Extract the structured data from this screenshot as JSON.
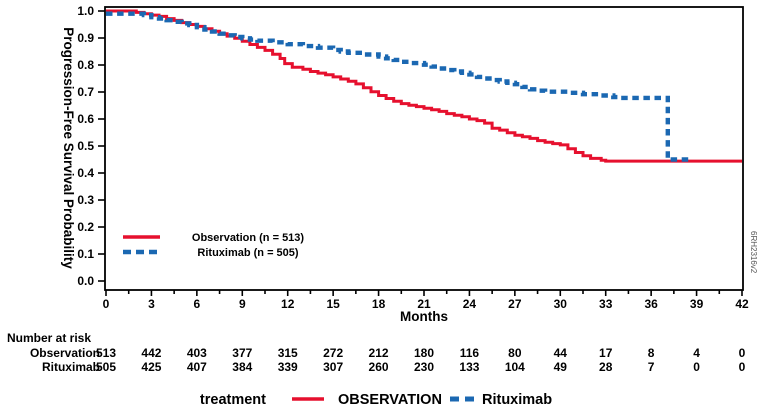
{
  "figure": {
    "y_axis_title": "Progression-Free Survival Probability",
    "x_axis_title": "Months",
    "side_label": "6RH2316v2",
    "colors": {
      "observation": "#E6102E",
      "rituximab": "#1B68B2",
      "axis": "#000000",
      "background": "#FFFFFF"
    }
  },
  "inner_legend": {
    "observation": "Observation (n = 513)",
    "rituximab": "Rituximab (n = 505)"
  },
  "bottom_legend": {
    "prefix": "treatment",
    "observation": "OBSERVATION",
    "rituximab": "Rituximab"
  },
  "risk_table": {
    "title": "Number at risk",
    "rows": [
      {
        "label": "Observation",
        "values": [
          513,
          442,
          403,
          377,
          315,
          272,
          212,
          180,
          116,
          80,
          44,
          17,
          8,
          4,
          0
        ]
      },
      {
        "label": "Rituximab",
        "values": [
          505,
          425,
          407,
          384,
          339,
          307,
          260,
          230,
          133,
          104,
          49,
          28,
          7,
          0,
          0
        ]
      }
    ]
  },
  "chart_data": {
    "type": "line",
    "subtype": "kaplan-meier-step",
    "title": "",
    "xlabel": "Months",
    "ylabel": "Progression-Free Survival Probability",
    "xlim": [
      0,
      42
    ],
    "ylim": [
      0.0,
      1.0
    ],
    "grid": false,
    "legend_position": "inside-left-lower",
    "x_ticks": [
      0,
      3,
      6,
      9,
      12,
      15,
      18,
      21,
      24,
      27,
      30,
      33,
      36,
      39,
      42
    ],
    "x_minor_tick_interval": 1.5,
    "y_tick_labels": [
      "0.0",
      "0.1",
      "0.2",
      "0.3",
      "0.4",
      "0.5",
      "0.6",
      "0.7",
      "0.8",
      "0.9",
      "1.0"
    ],
    "series": [
      {
        "name": "Observation (n = 513)",
        "color": "#E6102E",
        "style": "solid",
        "points": [
          [
            0,
            1.0
          ],
          [
            2,
            0.995
          ],
          [
            2.5,
            0.99
          ],
          [
            3,
            0.985
          ],
          [
            3.5,
            0.98
          ],
          [
            4,
            0.972
          ],
          [
            4.5,
            0.965
          ],
          [
            5,
            0.957
          ],
          [
            5.5,
            0.95
          ],
          [
            6,
            0.943
          ],
          [
            6.5,
            0.934
          ],
          [
            7,
            0.925
          ],
          [
            7.5,
            0.916
          ],
          [
            8,
            0.907
          ],
          [
            8.5,
            0.899
          ],
          [
            9,
            0.888
          ],
          [
            9.5,
            0.876
          ],
          [
            10,
            0.865
          ],
          [
            10.5,
            0.854
          ],
          [
            11,
            0.84
          ],
          [
            11.5,
            0.824
          ],
          [
            11.8,
            0.805
          ],
          [
            12.3,
            0.792
          ],
          [
            13,
            0.784
          ],
          [
            13.5,
            0.776
          ],
          [
            14,
            0.77
          ],
          [
            14.5,
            0.764
          ],
          [
            15,
            0.756
          ],
          [
            15.5,
            0.748
          ],
          [
            16,
            0.74
          ],
          [
            16.5,
            0.73
          ],
          [
            17,
            0.716
          ],
          [
            17.5,
            0.701
          ],
          [
            18,
            0.687
          ],
          [
            18.5,
            0.676
          ],
          [
            19,
            0.666
          ],
          [
            19.5,
            0.657
          ],
          [
            20,
            0.651
          ],
          [
            20.5,
            0.646
          ],
          [
            21,
            0.64
          ],
          [
            21.5,
            0.634
          ],
          [
            22,
            0.628
          ],
          [
            22.5,
            0.62
          ],
          [
            23,
            0.614
          ],
          [
            23.5,
            0.608
          ],
          [
            24,
            0.6
          ],
          [
            24.5,
            0.594
          ],
          [
            25,
            0.585
          ],
          [
            25.5,
            0.566
          ],
          [
            26,
            0.559
          ],
          [
            26.5,
            0.549
          ],
          [
            27,
            0.54
          ],
          [
            27.5,
            0.534
          ],
          [
            28,
            0.528
          ],
          [
            28.5,
            0.52
          ],
          [
            29,
            0.514
          ],
          [
            29.5,
            0.509
          ],
          [
            30,
            0.504
          ],
          [
            30.5,
            0.49
          ],
          [
            31,
            0.476
          ],
          [
            31.5,
            0.464
          ],
          [
            32,
            0.454
          ],
          [
            32.7,
            0.447
          ],
          [
            33,
            0.444
          ],
          [
            42,
            0.444
          ]
        ]
      },
      {
        "name": "Rituximab (n = 505)",
        "color": "#1B68B2",
        "style": "dashed",
        "points": [
          [
            0,
            0.99
          ],
          [
            2.5,
            0.985
          ],
          [
            3,
            0.977
          ],
          [
            3.5,
            0.972
          ],
          [
            4,
            0.966
          ],
          [
            4.5,
            0.96
          ],
          [
            5,
            0.954
          ],
          [
            5.5,
            0.948
          ],
          [
            6,
            0.94
          ],
          [
            6.5,
            0.931
          ],
          [
            7,
            0.924
          ],
          [
            7.5,
            0.916
          ],
          [
            8,
            0.91
          ],
          [
            8.5,
            0.904
          ],
          [
            9,
            0.899
          ],
          [
            9.5,
            0.894
          ],
          [
            10,
            0.89
          ],
          [
            11,
            0.884
          ],
          [
            12,
            0.877
          ],
          [
            13,
            0.87
          ],
          [
            14,
            0.864
          ],
          [
            15,
            0.856
          ],
          [
            15.5,
            0.85
          ],
          [
            16,
            0.845
          ],
          [
            17,
            0.839
          ],
          [
            18,
            0.831
          ],
          [
            18.5,
            0.825
          ],
          [
            19,
            0.819
          ],
          [
            19.5,
            0.812
          ],
          [
            20,
            0.807
          ],
          [
            21,
            0.801
          ],
          [
            21.5,
            0.794
          ],
          [
            22,
            0.787
          ],
          [
            22.5,
            0.781
          ],
          [
            23,
            0.776
          ],
          [
            23.5,
            0.771
          ],
          [
            24,
            0.765
          ],
          [
            24.5,
            0.756
          ],
          [
            25,
            0.75
          ],
          [
            25.5,
            0.744
          ],
          [
            26,
            0.739
          ],
          [
            26.5,
            0.734
          ],
          [
            27,
            0.729
          ],
          [
            27.5,
            0.719
          ],
          [
            28,
            0.71
          ],
          [
            28.5,
            0.705
          ],
          [
            29,
            0.701
          ],
          [
            30.5,
            0.697
          ],
          [
            31.5,
            0.692
          ],
          [
            32.5,
            0.687
          ],
          [
            33.5,
            0.681
          ],
          [
            34,
            0.678
          ],
          [
            37.1,
            0.45
          ],
          [
            38.5,
            0.446
          ]
        ]
      }
    ]
  }
}
